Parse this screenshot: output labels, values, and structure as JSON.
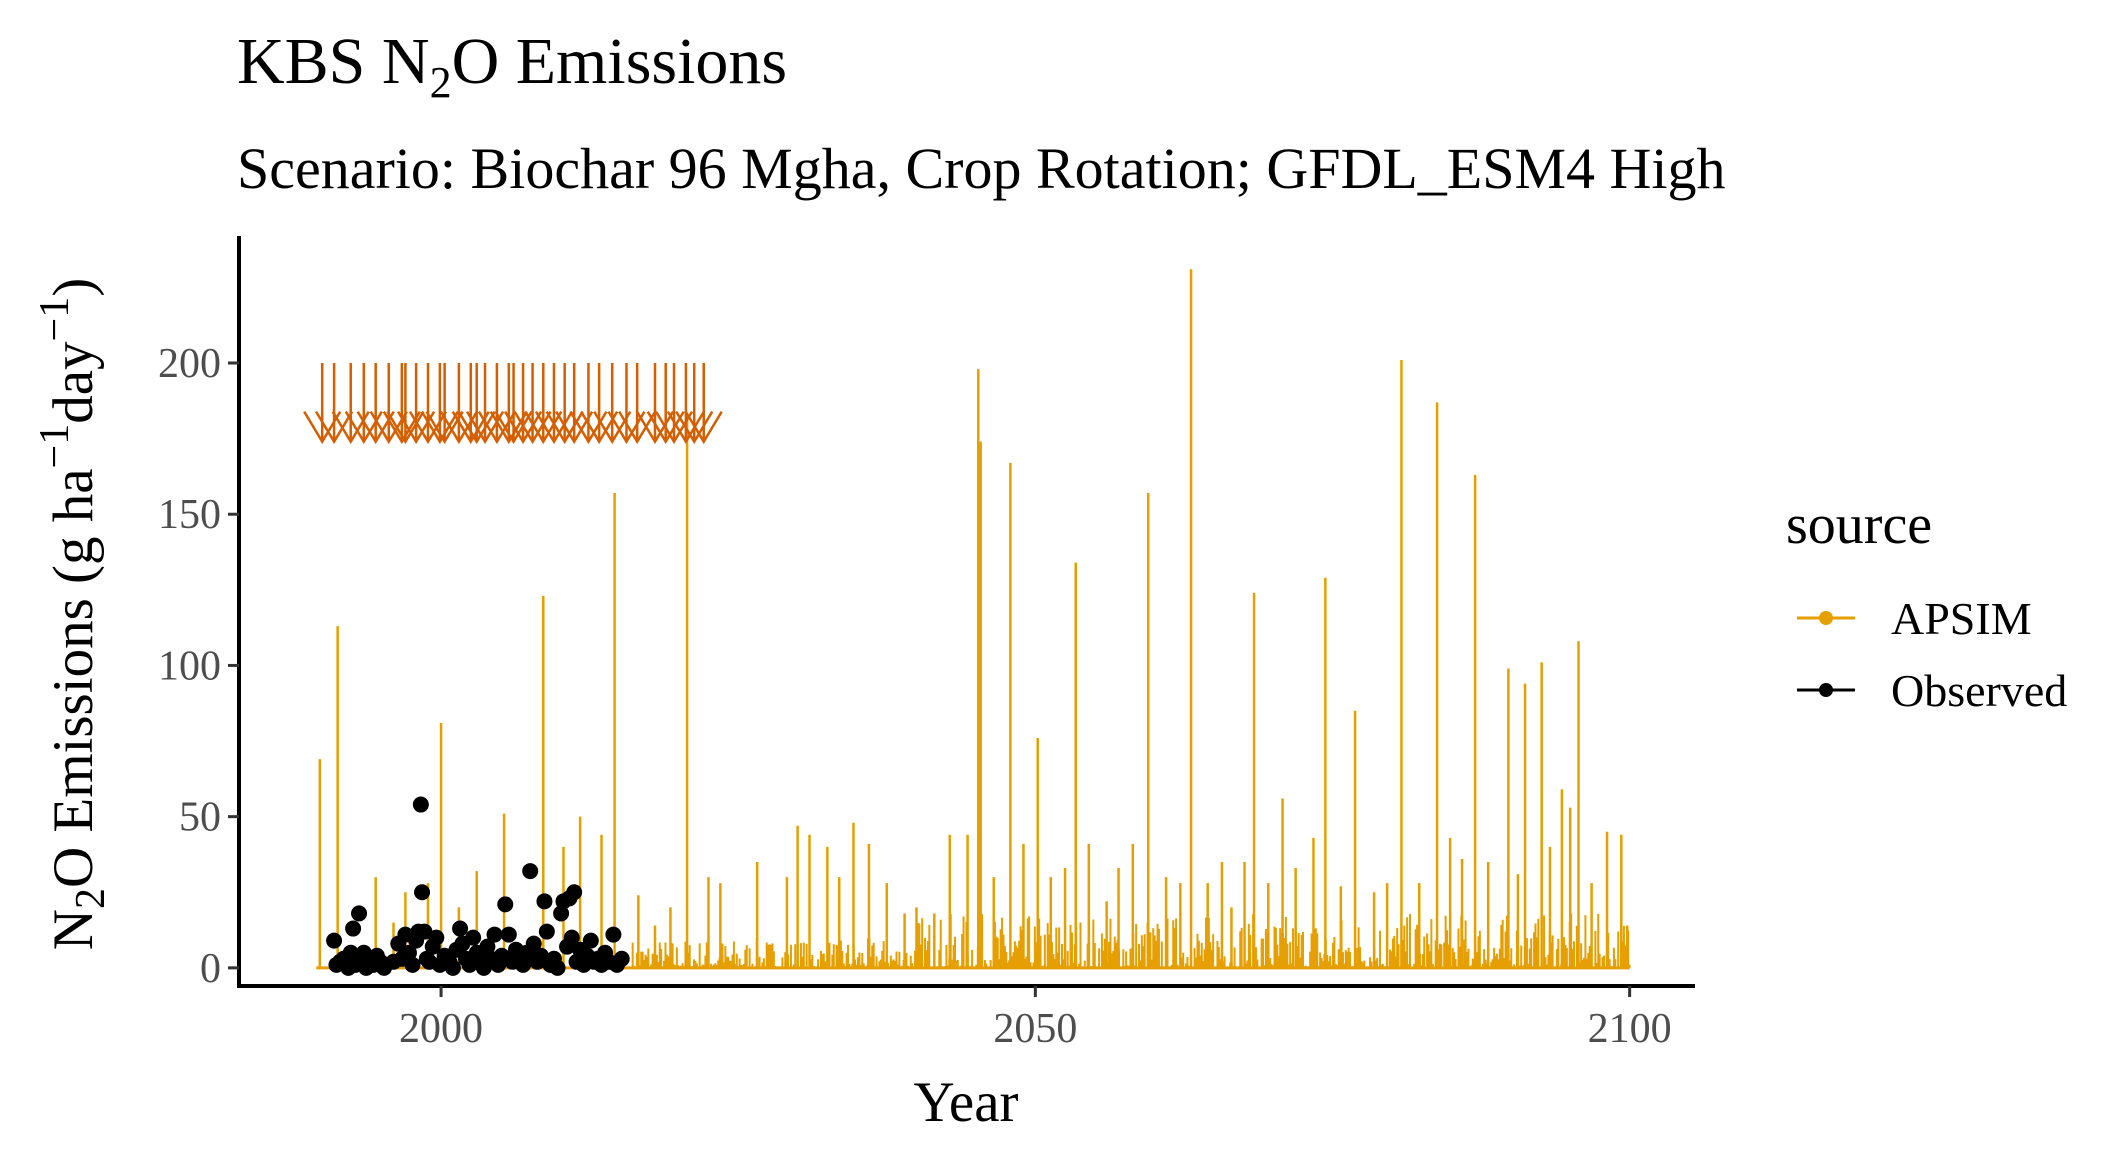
{
  "colors": {
    "apsim": "#E69F00",
    "observed": "#000000",
    "fertilizer": "#D55E00",
    "tick_text": "#4d4d4d"
  },
  "chart_data": {
    "type": "line",
    "title_main": "KBS N",
    "title_sub": "2",
    "title_end": "O Emissions",
    "subtitle": "Scenario: Biochar 96 Mgha, Crop Rotation; GFDL_ESM4 High",
    "xlabel": "Year",
    "ylabel": {
      "n": "N",
      "sub2": "2",
      "o": "O Emissions (g ha",
      "sup1": "−1",
      "day": "day",
      "sup2": "−1",
      "close": ")"
    },
    "xlim": [
      1983,
      2105.5
    ],
    "ylim": [
      -6,
      242
    ],
    "x_ticks": [
      2000,
      2050,
      2100
    ],
    "x_tick_labels": [
      "2000",
      "2050",
      "2100"
    ],
    "y_ticks": [
      0,
      50,
      100,
      150,
      200
    ],
    "y_tick_labels": [
      "0",
      "50",
      "100",
      "150",
      "200"
    ],
    "legend": {
      "title": "source",
      "position": "right",
      "entries": [
        {
          "name": "APSIM",
          "color": "#E69F00",
          "shape": "point-line"
        },
        {
          "name": "Observed",
          "color": "#000000",
          "shape": "point-line"
        }
      ]
    },
    "grid": false,
    "series": [
      {
        "name": "APSIM",
        "kind": "daily-spikes",
        "x_start": 1989.5,
        "x_end": 2100,
        "spikes": [
          [
            1989.8,
            69
          ],
          [
            1991.3,
            113
          ],
          [
            1994.5,
            30
          ],
          [
            1996.0,
            15
          ],
          [
            1997.0,
            25
          ],
          [
            1998.9,
            28
          ],
          [
            2000.0,
            81
          ],
          [
            2001.5,
            20
          ],
          [
            2003.0,
            32
          ],
          [
            2005.3,
            51
          ],
          [
            2008.6,
            123
          ],
          [
            2010.3,
            40
          ],
          [
            2011.7,
            50
          ],
          [
            2013.5,
            44
          ],
          [
            2014.6,
            157
          ],
          [
            2016.6,
            24
          ],
          [
            2018.0,
            14
          ],
          [
            2019.3,
            20
          ],
          [
            2020.7,
            183
          ],
          [
            2022.5,
            30
          ],
          [
            2023.5,
            28
          ],
          [
            2026.6,
            35
          ],
          [
            2029.1,
            30
          ],
          [
            2030.0,
            47
          ],
          [
            2031.0,
            44
          ],
          [
            2032.5,
            40
          ],
          [
            2033.5,
            30
          ],
          [
            2034.7,
            48
          ],
          [
            2036.0,
            41
          ],
          [
            2037.5,
            28
          ],
          [
            2039.0,
            18
          ],
          [
            2040.0,
            20
          ],
          [
            2041.5,
            18
          ],
          [
            2042.8,
            44
          ],
          [
            2044.3,
            44
          ],
          [
            2045.2,
            198
          ],
          [
            2045.4,
            174
          ],
          [
            2046.5,
            30
          ],
          [
            2047.9,
            167
          ],
          [
            2049.0,
            41
          ],
          [
            2050.2,
            76
          ],
          [
            2051.3,
            30
          ],
          [
            2052.5,
            33
          ],
          [
            2053.4,
            134
          ],
          [
            2054.5,
            41
          ],
          [
            2056.0,
            22
          ],
          [
            2057.0,
            33
          ],
          [
            2058.2,
            41
          ],
          [
            2059.5,
            157
          ],
          [
            2061.0,
            30
          ],
          [
            2062.2,
            28
          ],
          [
            2063.1,
            231
          ],
          [
            2064.5,
            28
          ],
          [
            2065.7,
            35
          ],
          [
            2066.5,
            20
          ],
          [
            2067.6,
            35
          ],
          [
            2068.4,
            124
          ],
          [
            2069.6,
            28
          ],
          [
            2070.8,
            56
          ],
          [
            2071.9,
            33
          ],
          [
            2073.4,
            43
          ],
          [
            2074.4,
            129
          ],
          [
            2075.7,
            27
          ],
          [
            2076.9,
            85
          ],
          [
            2078.5,
            25
          ],
          [
            2079.6,
            28
          ],
          [
            2080.8,
            201
          ],
          [
            2082.3,
            28
          ],
          [
            2083.8,
            187
          ],
          [
            2084.9,
            43
          ],
          [
            2085.9,
            36
          ],
          [
            2087.0,
            163
          ],
          [
            2088.1,
            35
          ],
          [
            2089.8,
            99
          ],
          [
            2090.6,
            31
          ],
          [
            2091.2,
            94
          ],
          [
            2092.6,
            101
          ],
          [
            2093.3,
            40
          ],
          [
            2094.3,
            59
          ],
          [
            2095.0,
            53
          ],
          [
            2095.7,
            108
          ],
          [
            2096.8,
            28
          ],
          [
            2098.1,
            45
          ],
          [
            2099.3,
            44
          ],
          [
            2099.8,
            14
          ]
        ]
      },
      {
        "name": "Observed",
        "kind": "points",
        "points": [
          [
            1991.0,
            9
          ],
          [
            1991.2,
            1
          ],
          [
            1991.5,
            2
          ],
          [
            1991.8,
            3
          ],
          [
            1992.2,
            0
          ],
          [
            1992.4,
            5
          ],
          [
            1992.6,
            13
          ],
          [
            1992.8,
            1
          ],
          [
            1993.1,
            18
          ],
          [
            1993.3,
            2
          ],
          [
            1993.5,
            5
          ],
          [
            1993.7,
            0
          ],
          [
            1994.0,
            3
          ],
          [
            1994.3,
            1
          ],
          [
            1994.6,
            4
          ],
          [
            1994.9,
            2
          ],
          [
            1995.2,
            0
          ],
          [
            1996.0,
            2
          ],
          [
            1996.4,
            8
          ],
          [
            1996.7,
            3
          ],
          [
            1997.0,
            11
          ],
          [
            1997.3,
            5
          ],
          [
            1997.6,
            1
          ],
          [
            1997.9,
            9
          ],
          [
            1998.1,
            12
          ],
          [
            1998.3,
            54
          ],
          [
            1998.4,
            25
          ],
          [
            1998.6,
            12
          ],
          [
            1998.8,
            3
          ],
          [
            1999.0,
            2
          ],
          [
            1999.3,
            7
          ],
          [
            1999.6,
            10
          ],
          [
            1999.9,
            1
          ],
          [
            2000.3,
            4
          ],
          [
            2000.7,
            2
          ],
          [
            2001.0,
            0
          ],
          [
            2001.3,
            6
          ],
          [
            2001.6,
            13
          ],
          [
            2001.8,
            8
          ],
          [
            2002.1,
            3
          ],
          [
            2002.4,
            1
          ],
          [
            2002.7,
            10
          ],
          [
            2003.0,
            5
          ],
          [
            2003.3,
            2
          ],
          [
            2003.6,
            0
          ],
          [
            2003.9,
            7
          ],
          [
            2004.2,
            3
          ],
          [
            2004.5,
            11
          ],
          [
            2004.8,
            1
          ],
          [
            2005.1,
            4
          ],
          [
            2005.4,
            21
          ],
          [
            2005.7,
            11
          ],
          [
            2006.0,
            2
          ],
          [
            2006.3,
            6
          ],
          [
            2006.6,
            3
          ],
          [
            2006.9,
            1
          ],
          [
            2007.2,
            5
          ],
          [
            2007.5,
            32
          ],
          [
            2007.8,
            8
          ],
          [
            2008.1,
            2
          ],
          [
            2008.4,
            4
          ],
          [
            2008.7,
            22
          ],
          [
            2008.9,
            12
          ],
          [
            2009.2,
            1
          ],
          [
            2009.5,
            3
          ],
          [
            2009.8,
            0
          ],
          [
            2010.1,
            18
          ],
          [
            2010.3,
            22
          ],
          [
            2010.6,
            7
          ],
          [
            2010.8,
            23
          ],
          [
            2011.0,
            10
          ],
          [
            2011.2,
            25
          ],
          [
            2011.4,
            2
          ],
          [
            2011.7,
            6
          ],
          [
            2012.0,
            1
          ],
          [
            2012.3,
            4
          ],
          [
            2012.6,
            9
          ],
          [
            2012.9,
            2
          ],
          [
            2013.2,
            3
          ],
          [
            2013.5,
            1
          ],
          [
            2013.8,
            5
          ],
          [
            2014.1,
            2
          ],
          [
            2014.5,
            11
          ],
          [
            2014.8,
            1
          ],
          [
            2015.2,
            3
          ]
        ]
      }
    ],
    "fertilizer_markers": {
      "color": "#D55E00",
      "top_value": 200,
      "years": [
        1990.0,
        1991.0,
        1992.4,
        1993.5,
        1994.5,
        1995.6,
        1996.7,
        1997.0,
        1997.9,
        1998.9,
        1999.9,
        2000.3,
        2001.5,
        2002.5,
        2003.0,
        2003.7,
        2004.7,
        2005.7,
        2006.1,
        2006.9,
        2007.7,
        2008.6,
        2009.5,
        2010.4,
        2011.2,
        2012.4,
        2013.3,
        2014.4,
        2015.6,
        2016.5,
        2018.0,
        2018.9,
        2019.6,
        2020.6,
        2021.3,
        2022.1
      ]
    }
  }
}
